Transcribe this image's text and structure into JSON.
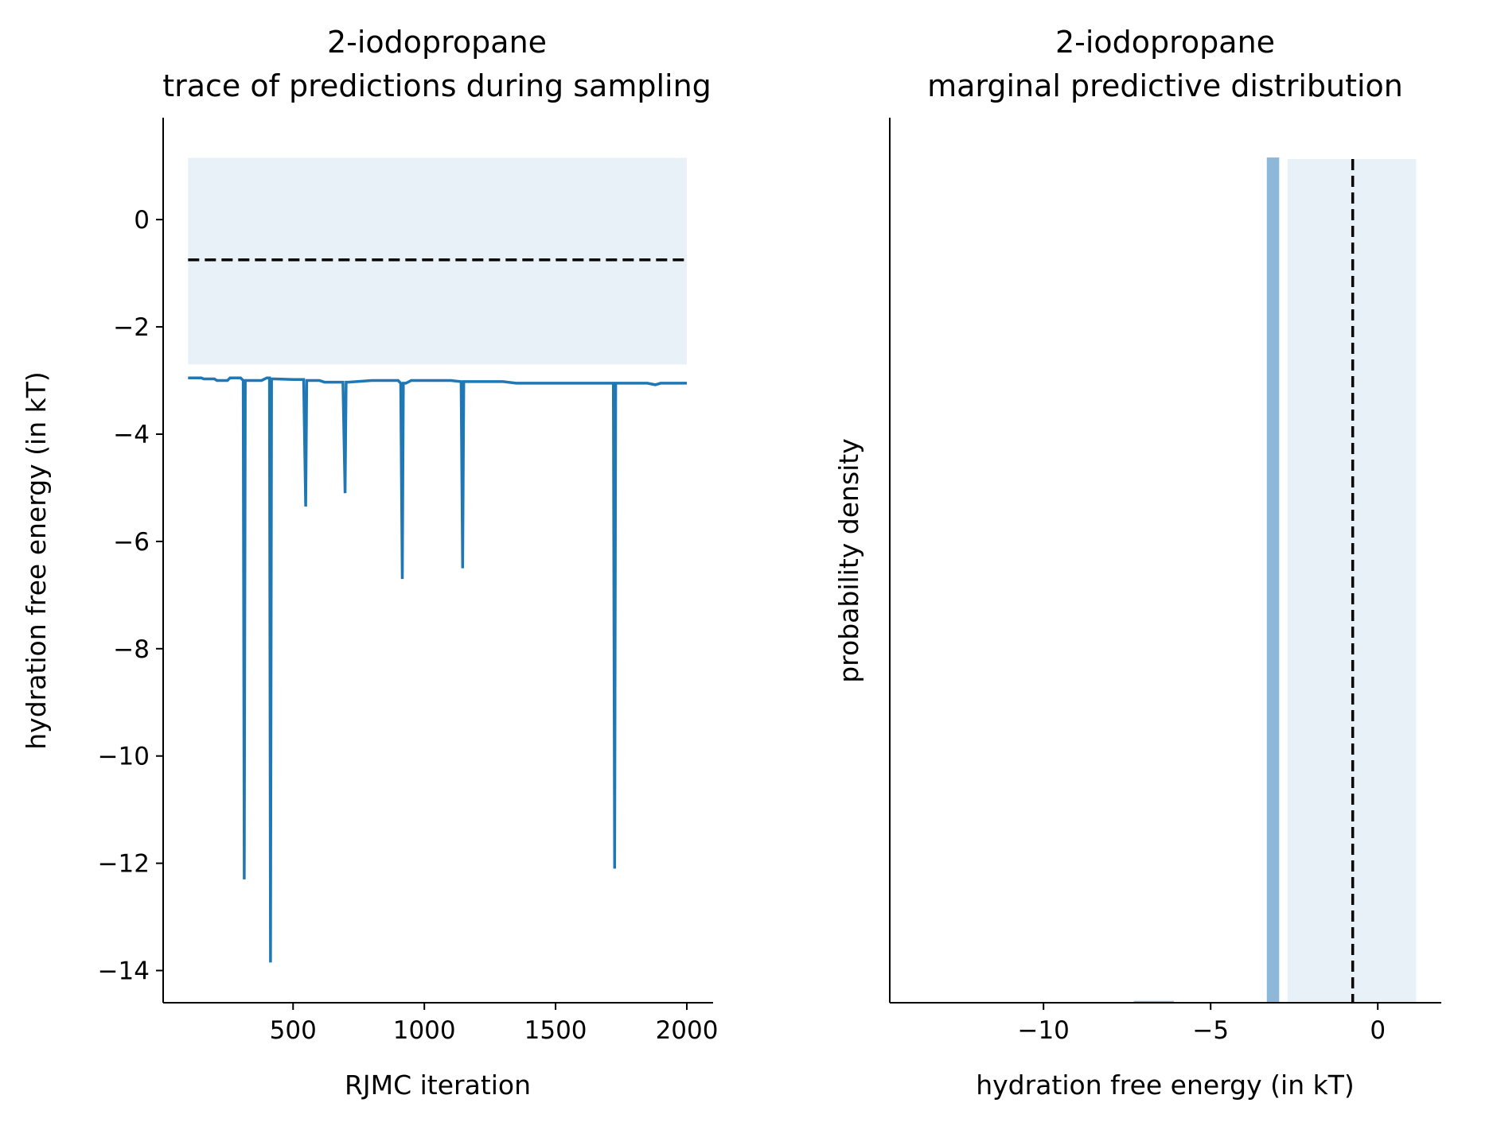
{
  "chart_data": [
    {
      "type": "line",
      "title": "2-iodopropane",
      "subtitle": "trace of predictions during sampling",
      "xlabel": "RJMC iteration",
      "ylabel": "hydration free energy (in kT)",
      "xlim": [
        5,
        2100
      ],
      "ylim": [
        -14.6,
        1.9
      ],
      "xticks": [
        500,
        1000,
        1500,
        2000
      ],
      "xtick_labels": [
        "500",
        "1000",
        "1500",
        "2000"
      ],
      "yticks": [
        0,
        -2,
        -4,
        -6,
        -8,
        -10,
        -12,
        -14
      ],
      "ytick_labels": [
        "0",
        "−2",
        "−4",
        "−6",
        "−8",
        "−10",
        "−12",
        "−14"
      ],
      "colors": {
        "trace": "#1f77b4",
        "band": "#e8f0f8",
        "reference": "#000000"
      },
      "grid": false,
      "reference_band": {
        "x": [
          100,
          2000
        ],
        "y": [
          -2.7,
          1.15
        ]
      },
      "reference_line": {
        "y": -0.75,
        "x": [
          100,
          2000
        ],
        "style": "dashed"
      },
      "series": [
        {
          "x": [
            100,
            150,
            160,
            200,
            210,
            250,
            260,
            300,
            310,
            314,
            318,
            330,
            380,
            400,
            410,
            414,
            418,
            430,
            500,
            540,
            548,
            552,
            560,
            600,
            620,
            690,
            698,
            702,
            710,
            800,
            900,
            910,
            916,
            920,
            930,
            950,
            1000,
            1100,
            1140,
            1146,
            1150,
            1160,
            1200,
            1300,
            1350,
            1400,
            1500,
            1600,
            1700,
            1720,
            1725,
            1729,
            1740,
            1800,
            1850,
            1880,
            1900,
            1950,
            2000
          ],
          "y": [
            -2.95,
            -2.95,
            -2.97,
            -2.97,
            -3.0,
            -3.0,
            -2.95,
            -2.95,
            -3.0,
            -12.3,
            -3.0,
            -3.0,
            -3.0,
            -2.95,
            -2.95,
            -13.85,
            -2.97,
            -2.97,
            -2.98,
            -2.98,
            -5.35,
            -3.0,
            -3.0,
            -3.0,
            -3.03,
            -3.03,
            -5.1,
            -3.03,
            -3.03,
            -3.0,
            -3.0,
            -3.05,
            -6.7,
            -3.05,
            -3.05,
            -3.0,
            -3.0,
            -3.0,
            -3.02,
            -6.5,
            -3.02,
            -3.02,
            -3.02,
            -3.02,
            -3.05,
            -3.05,
            -3.05,
            -3.05,
            -3.05,
            -3.05,
            -12.1,
            -3.05,
            -3.05,
            -3.05,
            -3.05,
            -3.08,
            -3.05,
            -3.05,
            -3.05
          ]
        }
      ]
    },
    {
      "type": "bar",
      "title": "2-iodopropane",
      "subtitle": "marginal predictive distribution",
      "xlabel": "hydration free energy (in kT)",
      "ylabel": "probability density",
      "xlim": [
        -14.6,
        1.9
      ],
      "ylim": [
        0,
        1
      ],
      "xticks": [
        -10,
        -5,
        0
      ],
      "xtick_labels": [
        "−10",
        "−5",
        "0"
      ],
      "yticks": [],
      "colors": {
        "bars": "#8db8d9",
        "band": "#e8f0f8",
        "reference": "#000000"
      },
      "grid": false,
      "reference_band": {
        "x": [
          -2.7,
          1.15
        ]
      },
      "reference_line": {
        "x": -0.75,
        "style": "dashed"
      },
      "bins": [
        {
          "x0": -7.3,
          "x1": -6.1,
          "value": 0.002
        },
        {
          "x0": -3.32,
          "x1": -2.95,
          "value": 0.955
        }
      ]
    }
  ]
}
